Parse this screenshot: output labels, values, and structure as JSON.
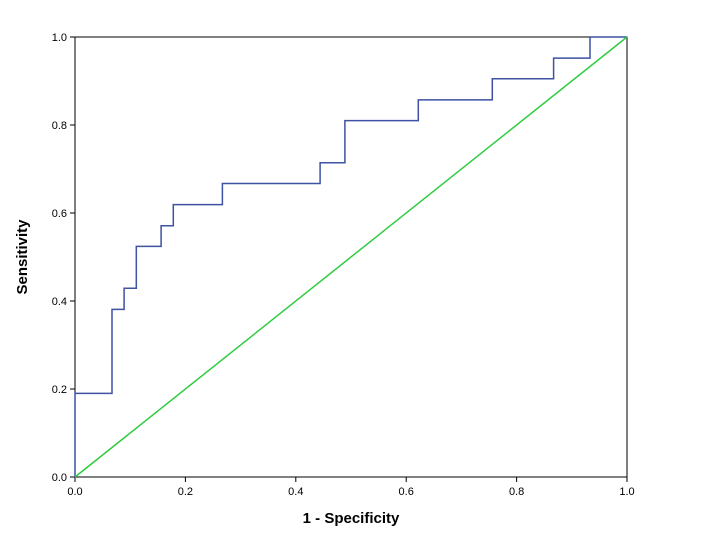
{
  "chart_data": {
    "type": "line",
    "xlabel": "1 - Specificity",
    "ylabel": "Sensitivity",
    "xlim": [
      0.0,
      1.0
    ],
    "ylim": [
      0.0,
      1.0
    ],
    "x_ticks": [
      "0.0",
      "0.2",
      "0.4",
      "0.6",
      "0.8",
      "1.0"
    ],
    "y_ticks": [
      "0.0",
      "0.2",
      "0.4",
      "0.6",
      "0.8",
      "1.0"
    ],
    "grid": false,
    "legend": "none",
    "series": [
      {
        "color": "#3d52a3",
        "step": true,
        "x": [
          0.0,
          0.0,
          0.067,
          0.067,
          0.089,
          0.089,
          0.111,
          0.111,
          0.156,
          0.156,
          0.178,
          0.178,
          0.267,
          0.267,
          0.444,
          0.444,
          0.489,
          0.489,
          0.622,
          0.622,
          0.756,
          0.756,
          0.867,
          0.867,
          0.933,
          0.933,
          1.0
        ],
        "y": [
          0.0,
          0.19,
          0.19,
          0.381,
          0.381,
          0.429,
          0.429,
          0.524,
          0.524,
          0.571,
          0.571,
          0.619,
          0.619,
          0.667,
          0.667,
          0.714,
          0.714,
          0.81,
          0.81,
          0.857,
          0.857,
          0.905,
          0.905,
          0.952,
          0.952,
          1.0,
          1.0
        ]
      },
      {
        "color": "#2ecc40",
        "step": false,
        "x": [
          0.0,
          1.0
        ],
        "y": [
          0.0,
          1.0
        ]
      }
    ]
  }
}
